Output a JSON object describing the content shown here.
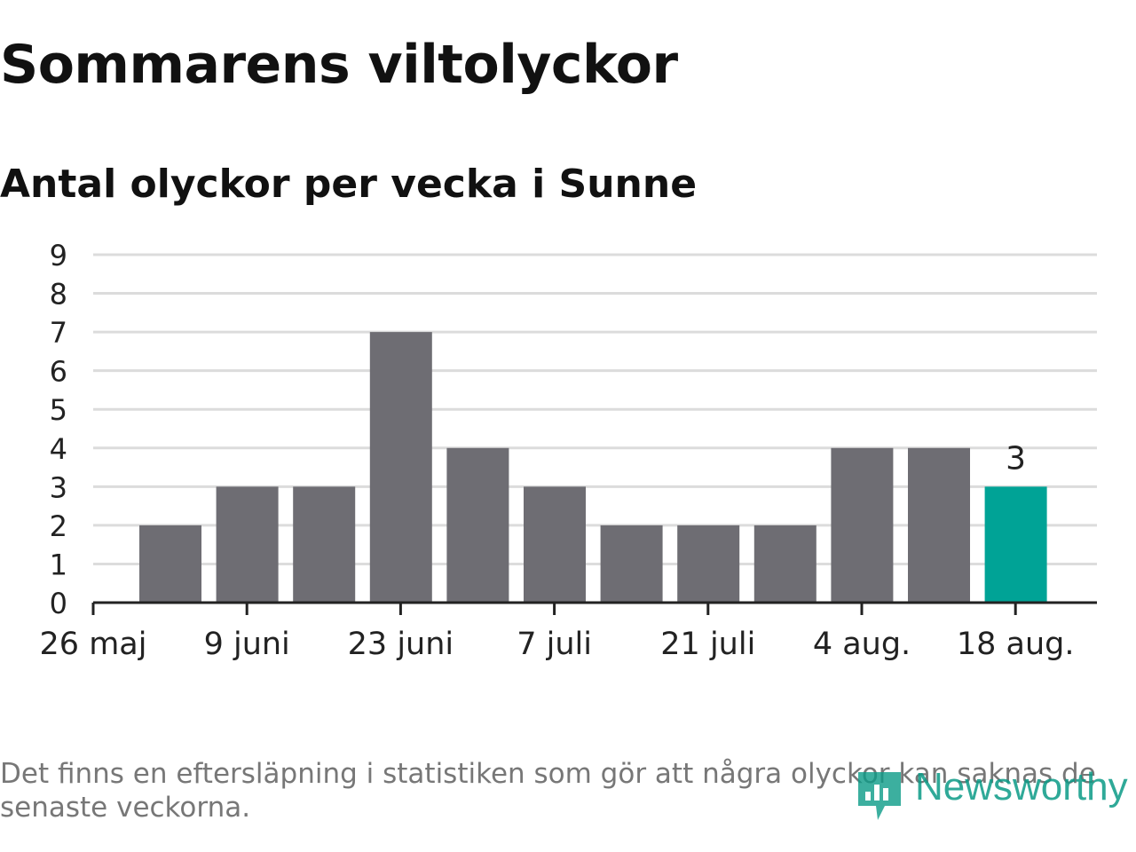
{
  "title": "Sommarens viltolyckor",
  "subtitle": "Antal olyckor per vecka i Sunne",
  "note": "Det finns en eftersläpning i statistiken som gör att några olyckor kan saknas de senaste veckorna.",
  "brand": "Newsworthy",
  "colors": {
    "bar": "#6e6d73",
    "highlight": "#00a396",
    "grid": "#dcdcdc",
    "axis": "#222222",
    "brand": "#0b9b87"
  },
  "chart_data": {
    "type": "bar",
    "x_ticks": [
      "26 maj",
      "9 juni",
      "23 juni",
      "7 juli",
      "21 juli",
      "4 aug.",
      "18 aug."
    ],
    "values": [
      2,
      3,
      3,
      7,
      4,
      3,
      2,
      2,
      2,
      4,
      4,
      3
    ],
    "highlight_index": 11,
    "data_labels": [
      {
        "index": 11,
        "text": "3"
      }
    ],
    "y_ticks": [
      0,
      1,
      2,
      3,
      4,
      5,
      6,
      7,
      8,
      9
    ],
    "ylim": [
      0,
      9
    ],
    "grid": true
  }
}
